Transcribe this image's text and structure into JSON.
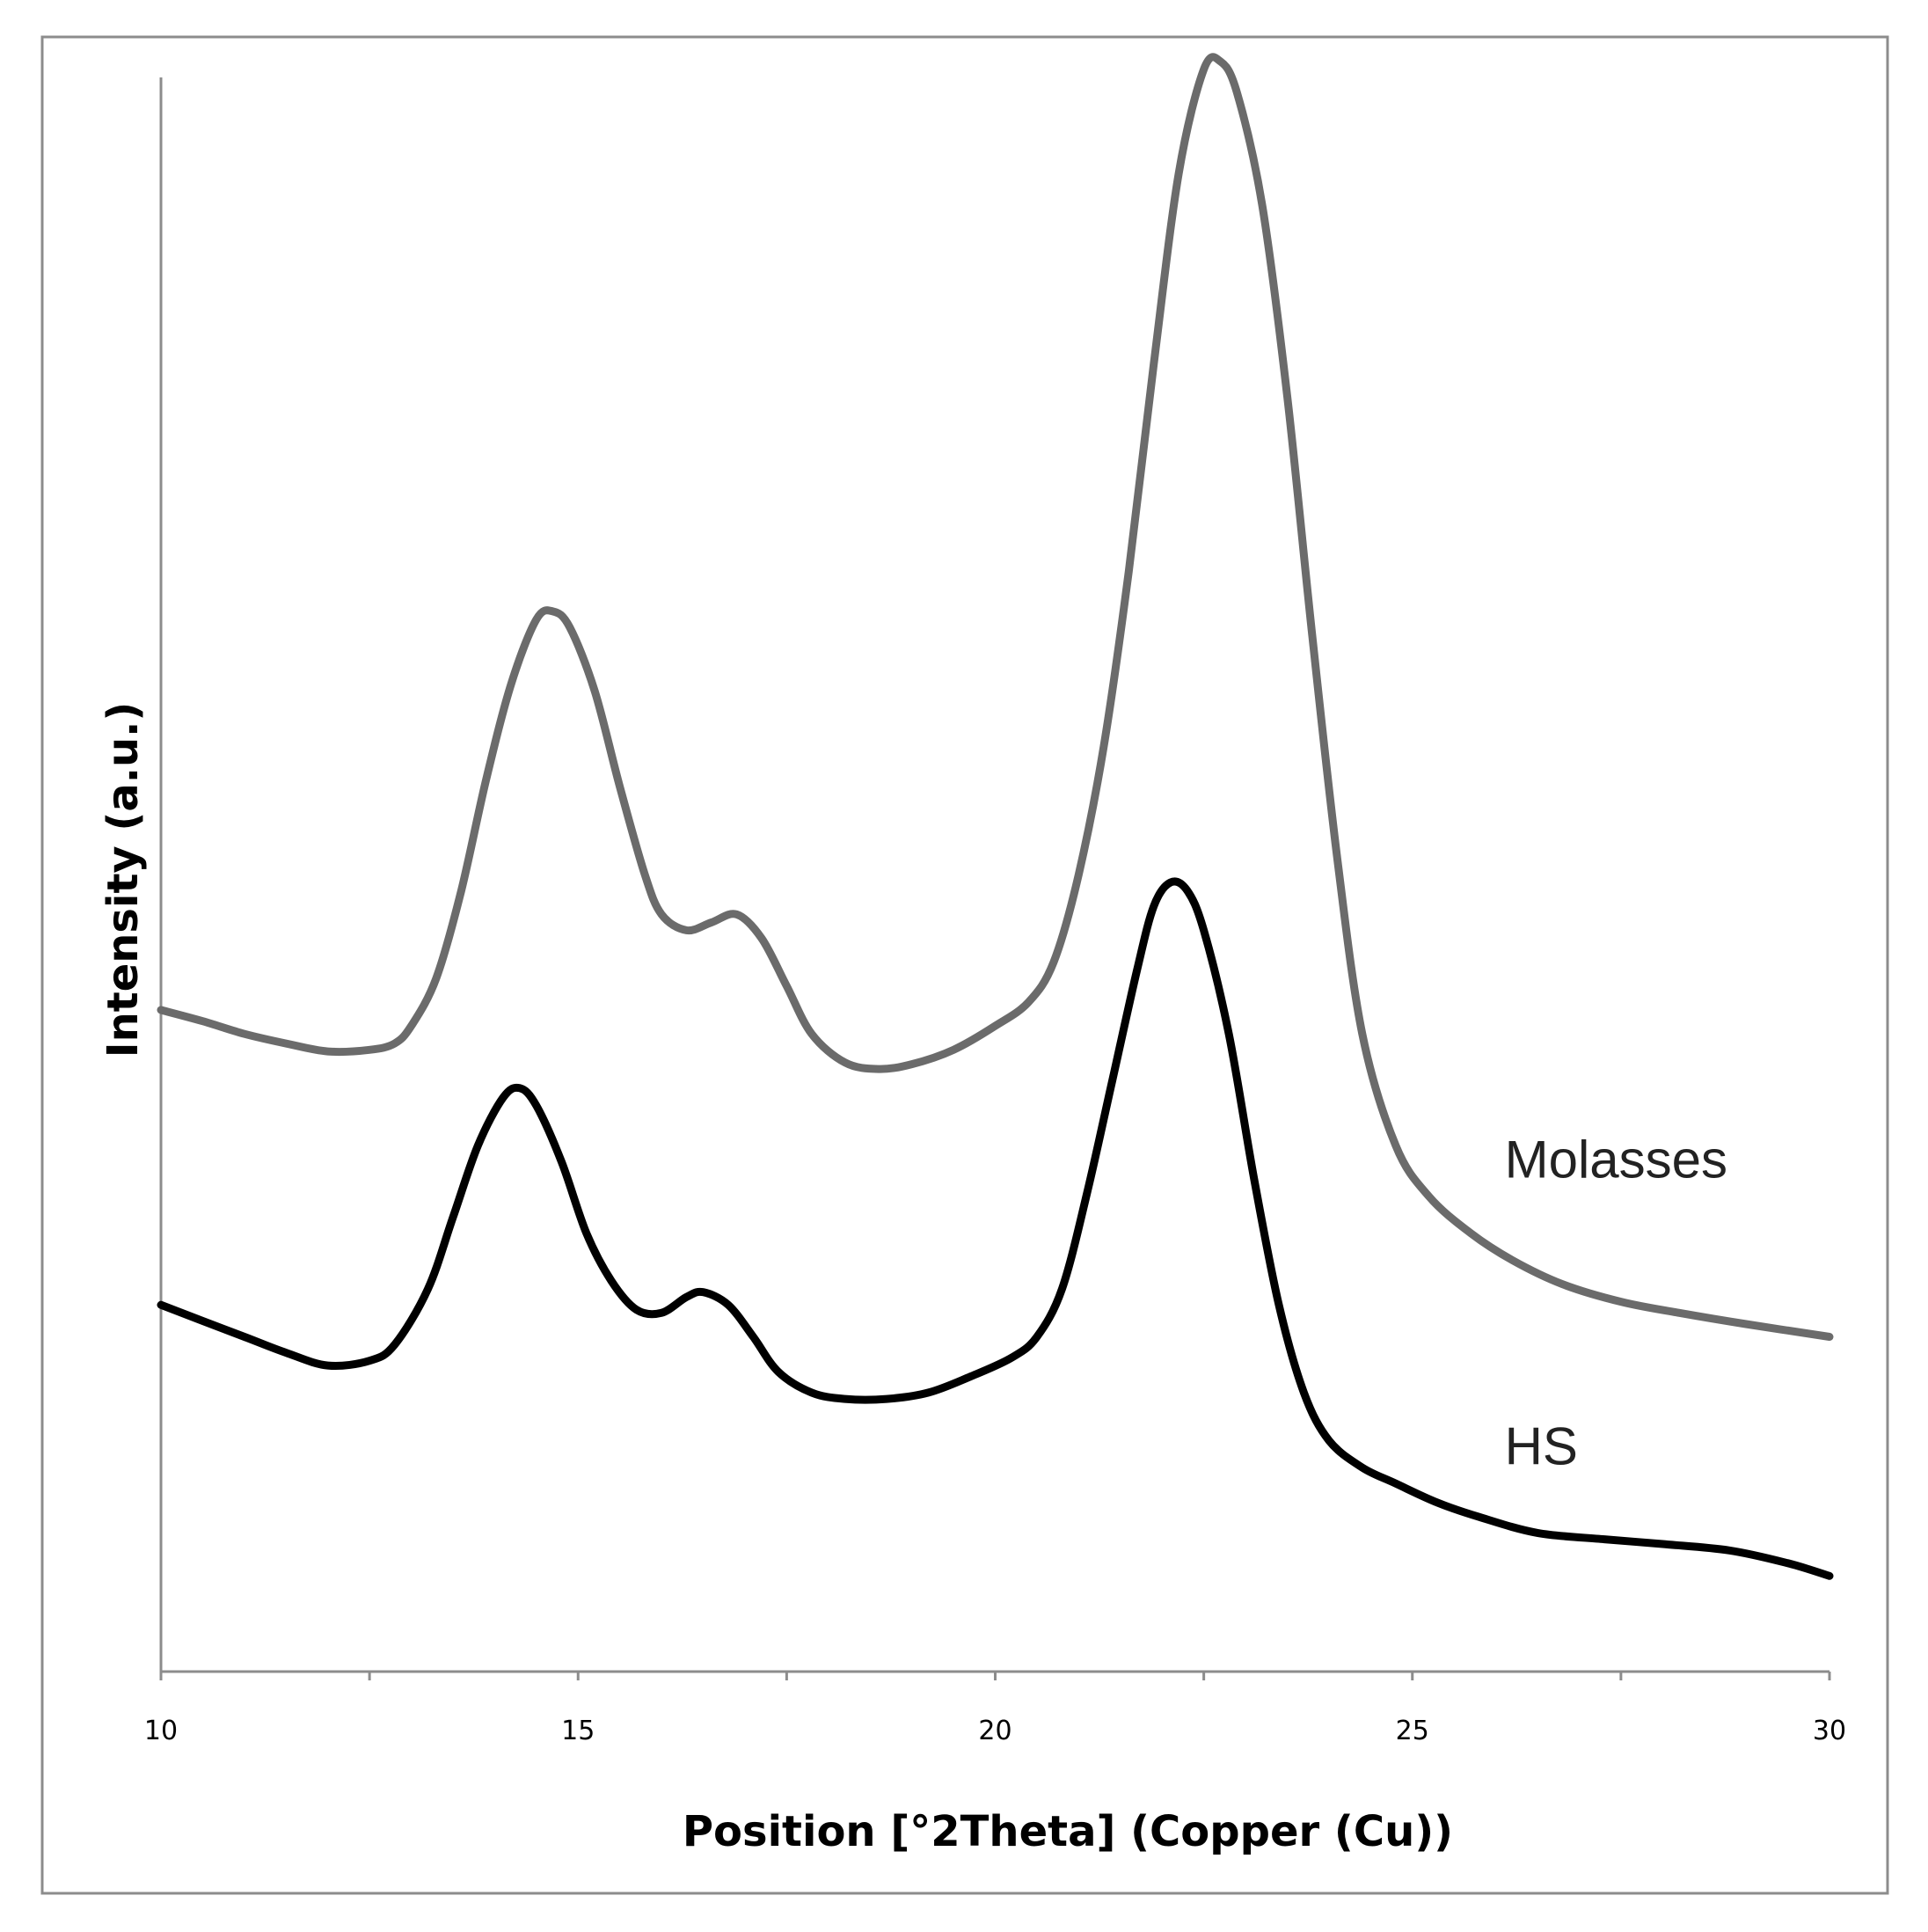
{
  "chart_data": {
    "type": "line",
    "title": "",
    "xlabel": "Position [°2Theta] (Copper (Cu))",
    "ylabel": "Intensity (a.u.)",
    "xlim": [
      10,
      30
    ],
    "ylim": [
      0,
      100
    ],
    "x_ticks": [
      10,
      15,
      20,
      25,
      30
    ],
    "x_tick_labels": [
      "10",
      "15",
      "20",
      "25",
      "30"
    ],
    "y_tick_labels_shown": false,
    "grid": false,
    "legend": "none (series labelled inline)",
    "series": [
      {
        "name": "Molasses",
        "color": "#6b6b6b",
        "points": [
          [
            10.0,
            41.5
          ],
          [
            10.5,
            40.8
          ],
          [
            11.0,
            40.0
          ],
          [
            11.5,
            39.4
          ],
          [
            12.0,
            38.9
          ],
          [
            12.5,
            39.0
          ],
          [
            12.8,
            39.4
          ],
          [
            13.0,
            40.5
          ],
          [
            13.3,
            43.5
          ],
          [
            13.6,
            49.0
          ],
          [
            13.9,
            56.0
          ],
          [
            14.2,
            62.0
          ],
          [
            14.5,
            66.0
          ],
          [
            14.7,
            66.5
          ],
          [
            14.9,
            65.5
          ],
          [
            15.2,
            61.5
          ],
          [
            15.5,
            55.5
          ],
          [
            15.8,
            50.0
          ],
          [
            16.0,
            47.5
          ],
          [
            16.3,
            46.5
          ],
          [
            16.6,
            47.0
          ],
          [
            16.9,
            47.5
          ],
          [
            17.2,
            46.0
          ],
          [
            17.5,
            43.0
          ],
          [
            17.8,
            40.0
          ],
          [
            18.2,
            38.2
          ],
          [
            18.6,
            37.8
          ],
          [
            19.0,
            38.1
          ],
          [
            19.5,
            39.0
          ],
          [
            20.0,
            40.5
          ],
          [
            20.4,
            42.0
          ],
          [
            20.7,
            44.5
          ],
          [
            21.0,
            50.0
          ],
          [
            21.3,
            58.0
          ],
          [
            21.6,
            69.0
          ],
          [
            21.9,
            82.0
          ],
          [
            22.2,
            94.0
          ],
          [
            22.5,
            100.5
          ],
          [
            22.7,
            101.0
          ],
          [
            22.9,
            99.0
          ],
          [
            23.2,
            92.0
          ],
          [
            23.5,
            80.0
          ],
          [
            23.8,
            65.0
          ],
          [
            24.1,
            51.0
          ],
          [
            24.4,
            40.0
          ],
          [
            24.8,
            33.0
          ],
          [
            25.2,
            29.8
          ],
          [
            25.7,
            27.5
          ],
          [
            26.2,
            25.8
          ],
          [
            26.8,
            24.3
          ],
          [
            27.5,
            23.2
          ],
          [
            28.2,
            22.5
          ],
          [
            29.0,
            21.8
          ],
          [
            30.0,
            21.0
          ]
        ]
      },
      {
        "name": "HS",
        "color": "#000000",
        "points": [
          [
            10.0,
            23.0
          ],
          [
            10.5,
            22.0
          ],
          [
            11.0,
            21.0
          ],
          [
            11.5,
            20.0
          ],
          [
            12.0,
            19.2
          ],
          [
            12.5,
            19.5
          ],
          [
            12.8,
            20.5
          ],
          [
            13.2,
            24.0
          ],
          [
            13.5,
            28.5
          ],
          [
            13.8,
            33.0
          ],
          [
            14.1,
            36.0
          ],
          [
            14.3,
            36.6
          ],
          [
            14.5,
            35.5
          ],
          [
            14.8,
            32.0
          ],
          [
            15.1,
            27.5
          ],
          [
            15.4,
            24.5
          ],
          [
            15.7,
            22.7
          ],
          [
            16.0,
            22.5
          ],
          [
            16.3,
            23.5
          ],
          [
            16.5,
            23.8
          ],
          [
            16.8,
            23.0
          ],
          [
            17.1,
            21.0
          ],
          [
            17.4,
            18.8
          ],
          [
            17.8,
            17.5
          ],
          [
            18.2,
            17.1
          ],
          [
            18.7,
            17.1
          ],
          [
            19.2,
            17.5
          ],
          [
            19.7,
            18.5
          ],
          [
            20.2,
            19.7
          ],
          [
            20.5,
            21.0
          ],
          [
            20.8,
            24.0
          ],
          [
            21.1,
            30.0
          ],
          [
            21.4,
            37.0
          ],
          [
            21.7,
            44.0
          ],
          [
            21.9,
            48.0
          ],
          [
            22.1,
            49.5
          ],
          [
            22.3,
            49.0
          ],
          [
            22.5,
            46.5
          ],
          [
            22.8,
            40.0
          ],
          [
            23.1,
            31.0
          ],
          [
            23.4,
            23.0
          ],
          [
            23.7,
            17.5
          ],
          [
            24.0,
            14.5
          ],
          [
            24.4,
            12.8
          ],
          [
            24.8,
            11.8
          ],
          [
            25.3,
            10.6
          ],
          [
            25.8,
            9.7
          ],
          [
            26.5,
            8.7
          ],
          [
            27.3,
            8.3
          ],
          [
            28.0,
            8.0
          ],
          [
            28.8,
            7.6
          ],
          [
            29.5,
            6.8
          ],
          [
            30.0,
            6.0
          ]
        ]
      }
    ]
  }
}
